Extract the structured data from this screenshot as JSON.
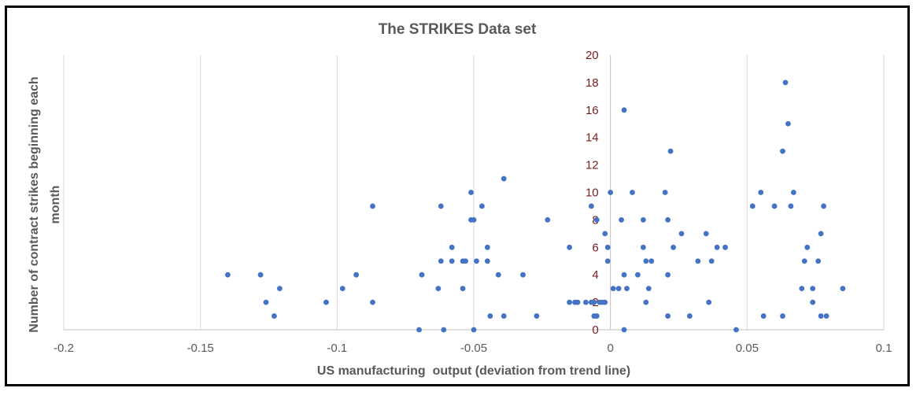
{
  "chart_data": {
    "type": "scatter",
    "title": "The STRIKES Data set",
    "xlabel": "US manufacturing  output (deviation from trend line)",
    "ylabel_line1": "Number of contract strikes beginning each",
    "ylabel_line2": "month",
    "xlim": [
      -0.2,
      0.1
    ],
    "ylim": [
      0,
      20
    ],
    "x_ticks": [
      "-0.2",
      "-0.15",
      "-0.1",
      "-0.05",
      "0",
      "0.05",
      "0.1"
    ],
    "y_ticks": [
      "0",
      "2",
      "4",
      "6",
      "8",
      "10",
      "12",
      "14",
      "16",
      "18",
      "20"
    ],
    "grid": "vertical",
    "colors": {
      "points": "#4472c4",
      "y_tick_labels": "#7b1b1b",
      "grid": "#d9d9d9",
      "axis": "#bfbfbf"
    },
    "points": [
      [
        -0.14,
        4
      ],
      [
        -0.128,
        4
      ],
      [
        -0.126,
        2
      ],
      [
        -0.123,
        1
      ],
      [
        -0.121,
        3
      ],
      [
        -0.104,
        2
      ],
      [
        -0.098,
        3
      ],
      [
        -0.093,
        4
      ],
      [
        -0.087,
        9
      ],
      [
        -0.087,
        2
      ],
      [
        -0.07,
        0
      ],
      [
        -0.069,
        4
      ],
      [
        -0.063,
        3
      ],
      [
        -0.062,
        5
      ],
      [
        -0.062,
        9
      ],
      [
        -0.061,
        0
      ],
      [
        -0.058,
        6
      ],
      [
        -0.058,
        5
      ],
      [
        -0.054,
        5
      ],
      [
        -0.054,
        3
      ],
      [
        -0.053,
        5
      ],
      [
        -0.051,
        10
      ],
      [
        -0.051,
        8
      ],
      [
        -0.05,
        8
      ],
      [
        -0.05,
        0
      ],
      [
        -0.049,
        5
      ],
      [
        -0.047,
        9
      ],
      [
        -0.045,
        5
      ],
      [
        -0.045,
        6
      ],
      [
        -0.044,
        1
      ],
      [
        -0.041,
        4
      ],
      [
        -0.039,
        11
      ],
      [
        -0.039,
        1
      ],
      [
        -0.032,
        4
      ],
      [
        -0.027,
        1
      ],
      [
        -0.023,
        8
      ],
      [
        -0.015,
        6
      ],
      [
        -0.015,
        2
      ],
      [
        -0.013,
        2
      ],
      [
        -0.012,
        2
      ],
      [
        -0.009,
        2
      ],
      [
        -0.007,
        2
      ],
      [
        -0.007,
        9
      ],
      [
        -0.006,
        1
      ],
      [
        -0.006,
        2
      ],
      [
        -0.005,
        1
      ],
      [
        -0.005,
        8
      ],
      [
        -0.004,
        2
      ],
      [
        -0.003,
        2
      ],
      [
        -0.002,
        2
      ],
      [
        -0.002,
        7
      ],
      [
        -0.001,
        6
      ],
      [
        -0.001,
        5
      ],
      [
        0,
        10
      ],
      [
        0.001,
        3
      ],
      [
        0.003,
        3
      ],
      [
        0.004,
        8
      ],
      [
        0.005,
        16
      ],
      [
        0.005,
        4
      ],
      [
        0.005,
        0
      ],
      [
        0.006,
        3
      ],
      [
        0.008,
        10
      ],
      [
        0.01,
        4
      ],
      [
        0.012,
        8
      ],
      [
        0.012,
        6
      ],
      [
        0.013,
        5
      ],
      [
        0.013,
        2
      ],
      [
        0.014,
        3
      ],
      [
        0.015,
        5
      ],
      [
        0.02,
        10
      ],
      [
        0.021,
        4
      ],
      [
        0.021,
        8
      ],
      [
        0.021,
        1
      ],
      [
        0.022,
        13
      ],
      [
        0.023,
        6
      ],
      [
        0.026,
        7
      ],
      [
        0.029,
        1
      ],
      [
        0.032,
        5
      ],
      [
        0.035,
        7
      ],
      [
        0.036,
        2
      ],
      [
        0.037,
        5
      ],
      [
        0.039,
        6
      ],
      [
        0.042,
        6
      ],
      [
        0.046,
        0
      ],
      [
        0.052,
        9
      ],
      [
        0.055,
        10
      ],
      [
        0.056,
        1
      ],
      [
        0.06,
        9
      ],
      [
        0.063,
        13
      ],
      [
        0.063,
        1
      ],
      [
        0.064,
        18
      ],
      [
        0.065,
        15
      ],
      [
        0.066,
        9
      ],
      [
        0.067,
        10
      ],
      [
        0.07,
        3
      ],
      [
        0.071,
        5
      ],
      [
        0.072,
        6
      ],
      [
        0.074,
        3
      ],
      [
        0.074,
        2
      ],
      [
        0.076,
        5
      ],
      [
        0.077,
        1
      ],
      [
        0.077,
        7
      ],
      [
        0.078,
        9
      ],
      [
        0.079,
        1
      ],
      [
        0.085,
        3
      ]
    ]
  }
}
